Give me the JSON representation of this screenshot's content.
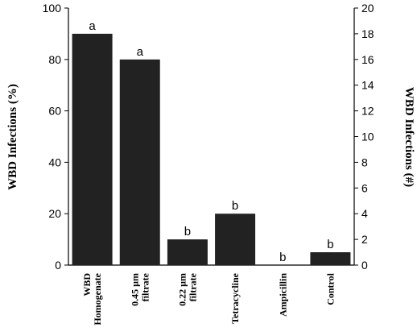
{
  "chart_data": {
    "type": "bar",
    "categories": [
      [
        "WBD",
        "Homogenate"
      ],
      [
        "0.45 µm",
        "filtrate"
      ],
      [
        "0.22 µm",
        "filtrate"
      ],
      [
        "Tetracycline"
      ],
      [
        "Ampicillin"
      ],
      [
        "Control"
      ]
    ],
    "values": [
      90,
      80,
      10,
      20,
      0,
      5
    ],
    "letters": [
      "a",
      "a",
      "b",
      "b",
      "b",
      "b"
    ],
    "ylabel": "WBD Infections (%)",
    "ylabel_right": "WBD Infections (#)",
    "ylim": [
      0,
      100
    ],
    "ylim_right": [
      0,
      20
    ],
    "yticks": [
      "0",
      "20",
      "40",
      "60",
      "80",
      "100"
    ],
    "yticks_right": [
      "0",
      "2",
      "4",
      "6",
      "8",
      "10",
      "12",
      "14",
      "16",
      "18",
      "20"
    ],
    "grid": false,
    "bar_color": "#222222"
  }
}
